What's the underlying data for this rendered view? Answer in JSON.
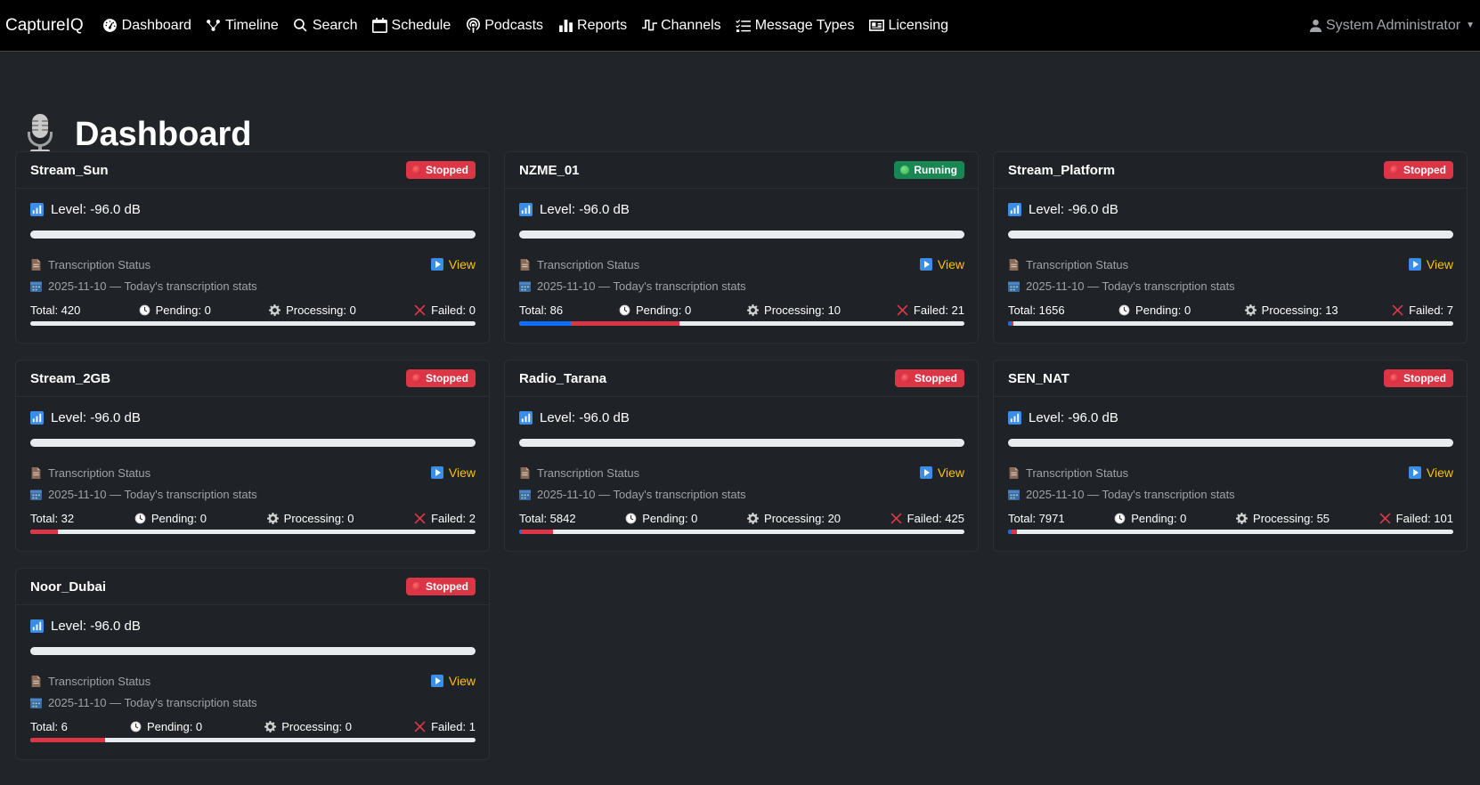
{
  "app": {
    "brand": "CaptureIQ",
    "user": "System Administrator"
  },
  "nav": [
    {
      "label": "Dashboard",
      "icon": "dashboard-icon"
    },
    {
      "label": "Timeline",
      "icon": "timeline-icon"
    },
    {
      "label": "Search",
      "icon": "search-icon"
    },
    {
      "label": "Schedule",
      "icon": "calendar-icon"
    },
    {
      "label": "Podcasts",
      "icon": "podcast-icon"
    },
    {
      "label": "Reports",
      "icon": "bar-chart-icon"
    },
    {
      "label": "Channels",
      "icon": "channels-icon"
    },
    {
      "label": "Message Types",
      "icon": "checklist-icon"
    },
    {
      "label": "Licensing",
      "icon": "id-card-icon"
    }
  ],
  "page": {
    "title": "Dashboard"
  },
  "labels": {
    "transcription_status": "Transcription Status",
    "view": "View",
    "stats_suffix": "Today's transcription stats"
  },
  "colors": {
    "stopped": "#dc3545",
    "running": "#198754",
    "processing_bar": "#0d6efd",
    "failed_bar": "#dc3545",
    "view_link": "#ffc107"
  },
  "streams": [
    {
      "name": "Stream_Sun",
      "status": "Stopped",
      "level": "Level: -96.0 dB",
      "date_line": "2025-11-10 — Today's transcription stats",
      "total": "Total: 420",
      "pending": "Pending: 0",
      "processing": "Processing: 0",
      "failed": "Failed: 0",
      "processing_pct": 0,
      "failed_pct": 0
    },
    {
      "name": "NZME_01",
      "status": "Running",
      "level": "Level: -96.0 dB",
      "date_line": "2025-11-10 — Today's transcription stats",
      "total": "Total: 86",
      "pending": "Pending: 0",
      "processing": "Processing: 10",
      "failed": "Failed: 21",
      "processing_pct": 11.6,
      "failed_pct": 24.4
    },
    {
      "name": "Stream_Platform",
      "status": "Stopped",
      "level": "Level: -96.0 dB",
      "date_line": "2025-11-10 — Today's transcription stats",
      "total": "Total: 1656",
      "pending": "Pending: 0",
      "processing": "Processing: 13",
      "failed": "Failed: 7",
      "processing_pct": 0.8,
      "failed_pct": 0.4
    },
    {
      "name": "Stream_2GB",
      "status": "Stopped",
      "level": "Level: -96.0 dB",
      "date_line": "2025-11-10 — Today's transcription stats",
      "total": "Total: 32",
      "pending": "Pending: 0",
      "processing": "Processing: 0",
      "failed": "Failed: 2",
      "processing_pct": 0,
      "failed_pct": 6.25
    },
    {
      "name": "Radio_Tarana",
      "status": "Stopped",
      "level": "Level: -96.0 dB",
      "date_line": "2025-11-10 — Today's transcription stats",
      "total": "Total: 5842",
      "pending": "Pending: 0",
      "processing": "Processing: 20",
      "failed": "Failed: 425",
      "processing_pct": 0.3,
      "failed_pct": 7.3
    },
    {
      "name": "SEN_NAT",
      "status": "Stopped",
      "level": "Level: -96.0 dB",
      "date_line": "2025-11-10 — Today's transcription stats",
      "total": "Total: 7971",
      "pending": "Pending: 0",
      "processing": "Processing: 55",
      "failed": "Failed: 101",
      "processing_pct": 0.7,
      "failed_pct": 1.3
    },
    {
      "name": "Noor_Dubai",
      "status": "Stopped",
      "level": "Level: -96.0 dB",
      "date_line": "2025-11-10 — Today's transcription stats",
      "total": "Total: 6",
      "pending": "Pending: 0",
      "processing": "Processing: 0",
      "failed": "Failed: 1",
      "processing_pct": 0,
      "failed_pct": 16.7
    }
  ]
}
